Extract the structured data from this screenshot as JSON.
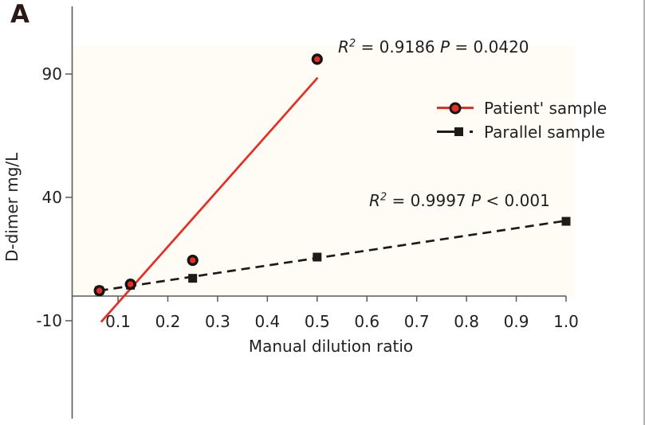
{
  "panel_label": "A",
  "colors": {
    "patient": "#e62e24",
    "parallel": "#1f1a17",
    "axis": "#5a5a5a",
    "text": "#231f20",
    "border": "#b4b4b4",
    "plot_bg": "#fffcf6"
  },
  "annotations": [
    {
      "r_label": "R",
      "r_sup": "2",
      "r_rest": " = 0.9186 ",
      "p_label": "P",
      "p_rest": " = 0.0420"
    },
    {
      "r_label": "R",
      "r_sup": "2",
      "r_rest": " = 0.9997 ",
      "p_label": "P",
      "p_rest": " < 0.001"
    }
  ],
  "legend": {
    "items": [
      {
        "label": "Patient' sample",
        "marker": "circle-on-red-line",
        "color": "#e62e24"
      },
      {
        "label": "Parallel sample",
        "marker": "square-on-dash-dot-line",
        "color": "#1f1a17"
      }
    ]
  },
  "chart_data": {
    "type": "scatter",
    "title": "",
    "xlabel": "Manual dilution ratio",
    "ylabel": "D-dimer mg/L",
    "x_ticks": [
      0.1,
      0.2,
      0.3,
      0.4,
      0.5,
      0.6,
      0.7,
      0.8,
      0.9,
      1.0
    ],
    "x_tick_labels": [
      "0.1",
      "0.2",
      "0.3",
      "0.4",
      "0.5",
      "0.6",
      "0.7",
      "0.8",
      "0.9",
      "1.0"
    ],
    "y_ticks": [
      90,
      40,
      -10
    ],
    "y_tick_labels": [
      "90",
      "40",
      "-10"
    ],
    "xlim": [
      0.0,
      1.05
    ],
    "ylim": [
      -50,
      115
    ],
    "grid": false,
    "legend_position": "upper right",
    "series": [
      {
        "name": "Patient' sample",
        "marker": "circle",
        "line": "solid",
        "color": "#e62e24",
        "points": [
          [
            0.0625,
            2.2
          ],
          [
            0.125,
            4.8
          ],
          [
            0.25,
            14.5
          ],
          [
            0.5,
            96
          ]
        ],
        "fit_line": {
          "style": "solid",
          "x1": 0.066,
          "y1": -10.5,
          "x2": 0.501,
          "y2": 88.5
        },
        "r2": 0.9186,
        "p": "= 0.0420"
      },
      {
        "name": "Parallel sample",
        "marker": "square",
        "line": "dashed",
        "color": "#1f1a17",
        "points": [
          [
            0.0625,
            2.2
          ],
          [
            0.125,
            4.4
          ],
          [
            0.25,
            7.2
          ],
          [
            0.5,
            15.8
          ],
          [
            1.0,
            30.3
          ]
        ],
        "fit_line": {
          "style": "dashed",
          "x1": 0.0625,
          "y1": 2.2,
          "x2": 0.992,
          "y2": 30.3
        },
        "r2": 0.9997,
        "p": "< 0.001"
      }
    ]
  }
}
